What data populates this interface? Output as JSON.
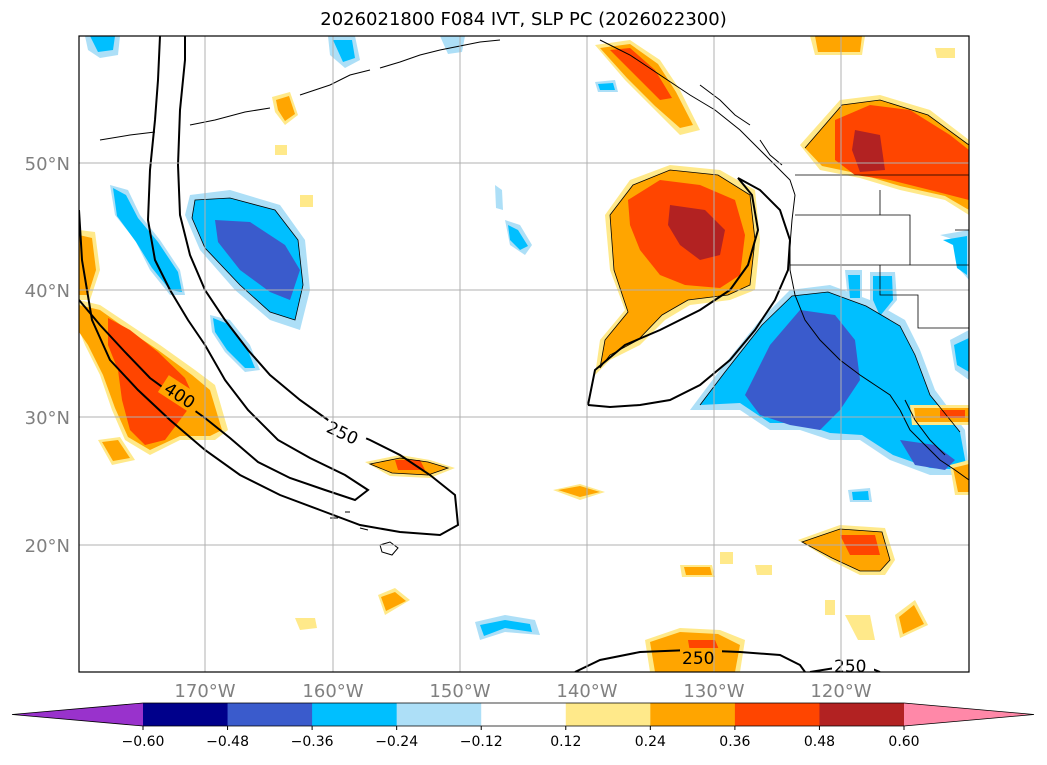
{
  "title": "2026021800 F084 IVT, SLP PC (2026022300)",
  "map": {
    "lat_ticks": [
      "20°N",
      "30°N",
      "40°N",
      "50°N"
    ],
    "lon_ticks": [
      "170°W",
      "160°W",
      "150°W",
      "140°W",
      "130°W",
      "120°W"
    ],
    "contour_labels": [
      "400",
      "250",
      "250",
      "250"
    ]
  },
  "colorbar": {
    "colors": [
      "#9932CC",
      "#00008B",
      "#3A5BCC",
      "#00BFFF",
      "#ADDFF7",
      "#FFFFFF",
      "#FFE98A",
      "#FFA500",
      "#FF4500",
      "#B22222",
      "#FF88A8"
    ],
    "tick_labels": [
      "−0.60",
      "−0.48",
      "−0.36",
      "−0.24",
      "−0.12",
      "0.12",
      "0.24",
      "0.36",
      "0.48",
      "0.60"
    ],
    "levels": [
      -0.6,
      -0.48,
      -0.36,
      -0.24,
      -0.12,
      0.12,
      0.24,
      0.36,
      0.48,
      0.6
    ]
  }
}
